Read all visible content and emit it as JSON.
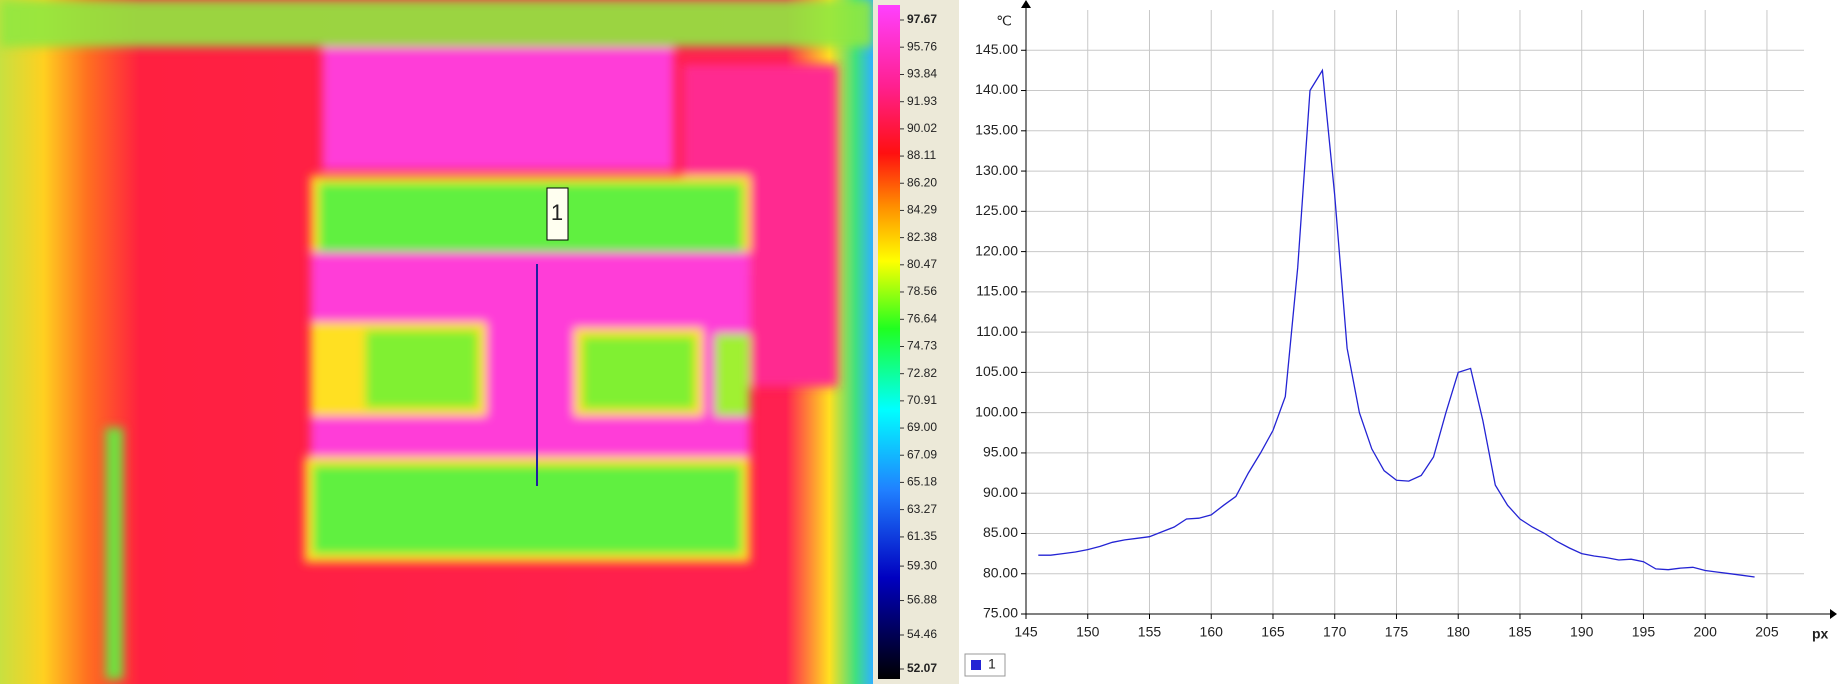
{
  "thermal_image": {
    "marker_label": "1",
    "colorbar": {
      "ticks": [
        97.67,
        95.76,
        93.84,
        91.93,
        90.02,
        88.11,
        {
          "value": 86.2,
          "label": "86.20"
        },
        84.29,
        82.38,
        80.47,
        78.56,
        76.64,
        74.73,
        72.82,
        70.91,
        {
          "value": 69,
          "label": "69.00"
        },
        67.09,
        65.18,
        63.27,
        61.35,
        {
          "value": 59.3,
          "label": "59.30"
        },
        56.88,
        54.46,
        52.07
      ]
    }
  },
  "chart_data": {
    "type": "line",
    "y_label": "℃",
    "x_label": "px",
    "x": [
      146,
      147,
      148,
      149,
      150,
      151,
      152,
      153,
      154,
      155,
      156,
      157,
      158,
      159,
      160,
      161,
      162,
      163,
      164,
      165,
      166,
      167,
      168,
      169,
      170,
      171,
      172,
      173,
      174,
      175,
      176,
      177,
      178,
      179,
      180,
      181,
      182,
      183,
      184,
      185,
      186,
      187,
      188,
      189,
      190,
      191,
      192,
      193,
      194,
      195,
      196,
      197,
      198,
      199,
      200,
      201,
      202,
      203,
      204
    ],
    "series": [
      {
        "name": "1",
        "color": "#2424d4",
        "values": [
          82.3,
          82.3,
          82.5,
          82.7,
          83.0,
          83.4,
          83.9,
          84.2,
          84.4,
          84.6,
          85.2,
          85.8,
          86.8,
          86.9,
          87.3,
          88.5,
          89.6,
          92.5,
          95.0,
          97.8,
          102,
          118,
          140,
          142.5,
          127,
          108,
          100,
          95.5,
          92.8,
          91.6,
          91.5,
          92.2,
          94.5,
          100,
          105,
          105.5,
          99,
          91,
          88.5,
          86.8,
          85.8,
          85,
          84,
          83.2,
          82.5,
          82.2,
          82,
          81.7,
          81.8,
          81.5,
          80.6,
          80.5,
          80.7,
          80.8,
          80.4,
          80.2,
          80.0,
          79.8,
          79.6
        ]
      }
    ],
    "xlim": [
      145,
      208
    ],
    "ylim": [
      75,
      150
    ],
    "xticks": [
      145,
      150,
      155,
      160,
      165,
      170,
      175,
      180,
      185,
      190,
      195,
      200,
      205
    ],
    "yticks": [
      {
        "value": 75,
        "label": "75.00"
      },
      {
        "value": 80,
        "label": "80.00"
      },
      {
        "value": 85,
        "label": "85.00"
      },
      {
        "value": 90,
        "label": "90.00"
      },
      {
        "value": 95,
        "label": "95.00"
      },
      {
        "value": 100,
        "label": "100.00"
      },
      {
        "value": 105,
        "label": "105.00"
      },
      {
        "value": 110,
        "label": "110.00"
      },
      {
        "value": 115,
        "label": "115.00"
      },
      {
        "value": 120,
        "label": "120.00"
      },
      {
        "value": 125,
        "label": "125.00"
      },
      {
        "value": 130,
        "label": "130.00"
      },
      {
        "value": 135,
        "label": "135.00"
      },
      {
        "value": 140,
        "label": "140.00"
      },
      {
        "value": 145,
        "label": "145.00"
      }
    ],
    "grid": true
  }
}
